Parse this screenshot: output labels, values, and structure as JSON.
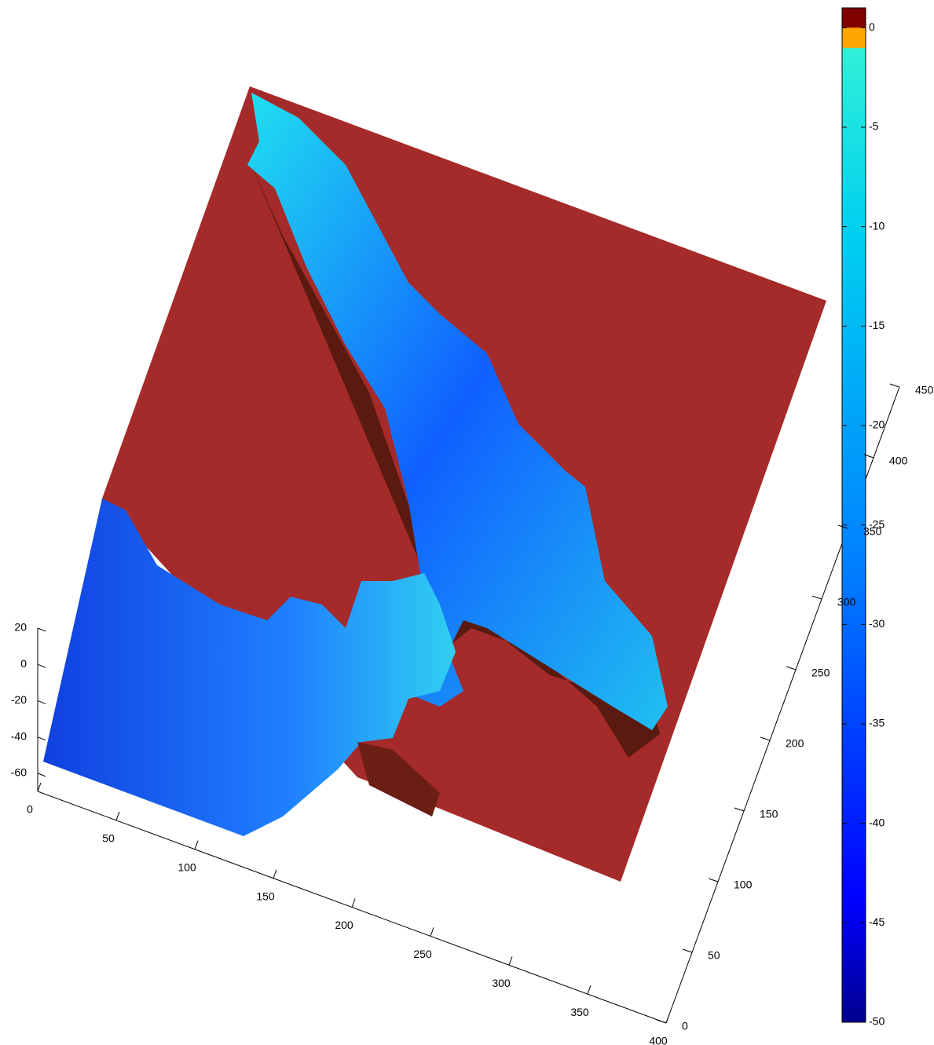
{
  "chart_data": {
    "type": "surface",
    "xlim": [
      0,
      400
    ],
    "xticks": [
      0,
      50,
      100,
      150,
      200,
      250,
      300,
      350,
      400
    ],
    "ylim": [
      0,
      450
    ],
    "yticks": [
      0,
      50,
      100,
      150,
      200,
      250,
      300,
      350,
      400,
      450
    ],
    "zlim": [
      -70,
      20
    ],
    "zticks": [
      -60,
      -40,
      -20,
      0,
      20
    ],
    "clim": [
      -50,
      1
    ],
    "cticks": [
      -50,
      -45,
      -40,
      -35,
      -30,
      -25,
      -20,
      -15,
      -10,
      -5,
      0
    ]
  }
}
